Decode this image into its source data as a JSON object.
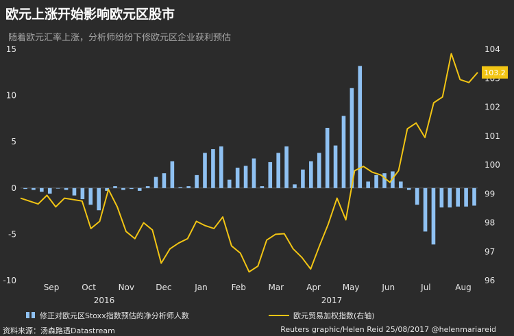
{
  "header": {
    "title": "欧元上涨开始影响欧元区股市",
    "subtitle": "随着欧元汇率上涨，分析师纷纷下修欧元区企业获利预估"
  },
  "legend": {
    "bars_label": "修正对欧元区Stoxx指数预估的净分析师人数",
    "line_label": "欧元贸易加权指数(右轴)"
  },
  "footer": {
    "source": "资料来源：汤森路透Datastream",
    "credit": "Reuters graphic/Helen Reid 25/08/2017  @helenmariareid"
  },
  "colors": {
    "background": "#2b2b2b",
    "bars": "#8fc1f2",
    "line": "#f2c514",
    "axis_text": "#e6e6e6"
  },
  "chart_data": {
    "type": "bar",
    "title": "欧元上涨开始影响欧元区股市",
    "x_tick_labels": [
      "Sep",
      "Oct",
      "Nov",
      "Dec",
      "Jan",
      "Feb",
      "Mar",
      "Apr",
      "May",
      "Jun",
      "Jul",
      "Aug"
    ],
    "year_labels": [
      "2016",
      "2017"
    ],
    "ylim_left": [
      -10,
      15
    ],
    "yticks_left": [
      15,
      10,
      5,
      0,
      -5,
      -10
    ],
    "ylim_right": [
      96,
      104
    ],
    "yticks_right": [
      104,
      103,
      102,
      101,
      100,
      99,
      98,
      97,
      96
    ],
    "grid": false,
    "series": [
      {
        "name": "修正对欧元区Stoxx指数预估的净分析师人数",
        "type": "bar",
        "axis": "left",
        "values": [
          -0.1,
          -0.2,
          -0.4,
          -0.6,
          0,
          -0.2,
          -0.8,
          -1.2,
          -1.8,
          -2.4,
          -0.3,
          0.2,
          -0.2,
          -0.1,
          -0.3,
          0.2,
          1.2,
          1.6,
          2.9,
          0.1,
          0.2,
          1.4,
          3.8,
          4.2,
          4.5,
          0.9,
          2.2,
          2.4,
          3.2,
          0.2,
          2.8,
          3.8,
          4.5,
          0.4,
          2.0,
          2.9,
          3.8,
          6.5,
          4.6,
          7.8,
          10.8,
          13.2,
          0.7,
          1.4,
          1.6,
          1.8,
          0.7,
          -0.2,
          -1.8,
          -4.7,
          -6.1,
          -2.1,
          -2.1,
          -2.0,
          -2.0,
          -1.9
        ]
      },
      {
        "name": "欧元贸易加权指数(右轴)",
        "type": "line",
        "axis": "right",
        "values": [
          98.85,
          98.75,
          98.65,
          98.95,
          98.55,
          98.85,
          98.8,
          98.75,
          97.8,
          98.05,
          99.15,
          98.55,
          97.7,
          97.45,
          98.0,
          97.75,
          96.6,
          97.1,
          97.3,
          97.45,
          98.05,
          97.9,
          97.8,
          98.2,
          97.2,
          96.95,
          96.3,
          96.5,
          97.4,
          97.6,
          97.62,
          97.1,
          96.8,
          96.4,
          97.2,
          97.95,
          98.85,
          98.1,
          99.8,
          99.95,
          99.75,
          99.65,
          99.4,
          99.8,
          101.25,
          101.45,
          100.95,
          102.15,
          102.35,
          103.85,
          102.95,
          102.85,
          103.2
        ]
      }
    ],
    "last_value_label": "103.2"
  }
}
